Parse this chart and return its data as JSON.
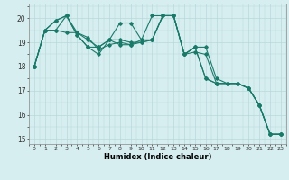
{
  "title": "",
  "xlabel": "Humidex (Indice chaleur)",
  "ylabel": "",
  "bg_color": "#d6eef0",
  "grid_color": "#b8d8da",
  "line_color": "#1a7a6a",
  "xlim": [
    -0.5,
    23.5
  ],
  "ylim": [
    14.8,
    20.6
  ],
  "yticks": [
    15,
    16,
    17,
    18,
    19,
    20
  ],
  "xticks": [
    0,
    1,
    2,
    3,
    4,
    5,
    6,
    7,
    8,
    9,
    10,
    11,
    12,
    13,
    14,
    15,
    16,
    17,
    18,
    19,
    20,
    21,
    22,
    23
  ],
  "series": [
    [
      18.0,
      19.5,
      19.5,
      20.1,
      19.4,
      19.1,
      18.8,
      19.1,
      19.1,
      19.0,
      19.0,
      19.1,
      20.1,
      20.1,
      18.5,
      18.8,
      18.8,
      17.5,
      17.3,
      17.3,
      17.1,
      16.4,
      15.2,
      15.2
    ],
    [
      18.0,
      19.5,
      19.9,
      20.1,
      19.3,
      18.8,
      18.8,
      19.1,
      19.8,
      19.8,
      19.1,
      20.1,
      20.1,
      20.1,
      18.5,
      18.8,
      17.5,
      17.3,
      17.3,
      17.3,
      17.1,
      16.4,
      15.2,
      15.2
    ],
    [
      18.0,
      19.5,
      19.5,
      19.4,
      19.4,
      19.2,
      18.7,
      18.9,
      19.0,
      18.9,
      19.0,
      19.1,
      20.1,
      20.1,
      18.5,
      18.6,
      18.5,
      17.3,
      17.3,
      17.3,
      17.1,
      16.4,
      15.2,
      15.2
    ],
    [
      18.0,
      19.5,
      19.9,
      20.1,
      19.3,
      18.8,
      18.5,
      19.1,
      18.9,
      18.9,
      19.1,
      19.1,
      20.1,
      20.1,
      18.5,
      18.8,
      17.5,
      17.3,
      17.3,
      17.3,
      17.1,
      16.4,
      15.2,
      15.2
    ]
  ]
}
